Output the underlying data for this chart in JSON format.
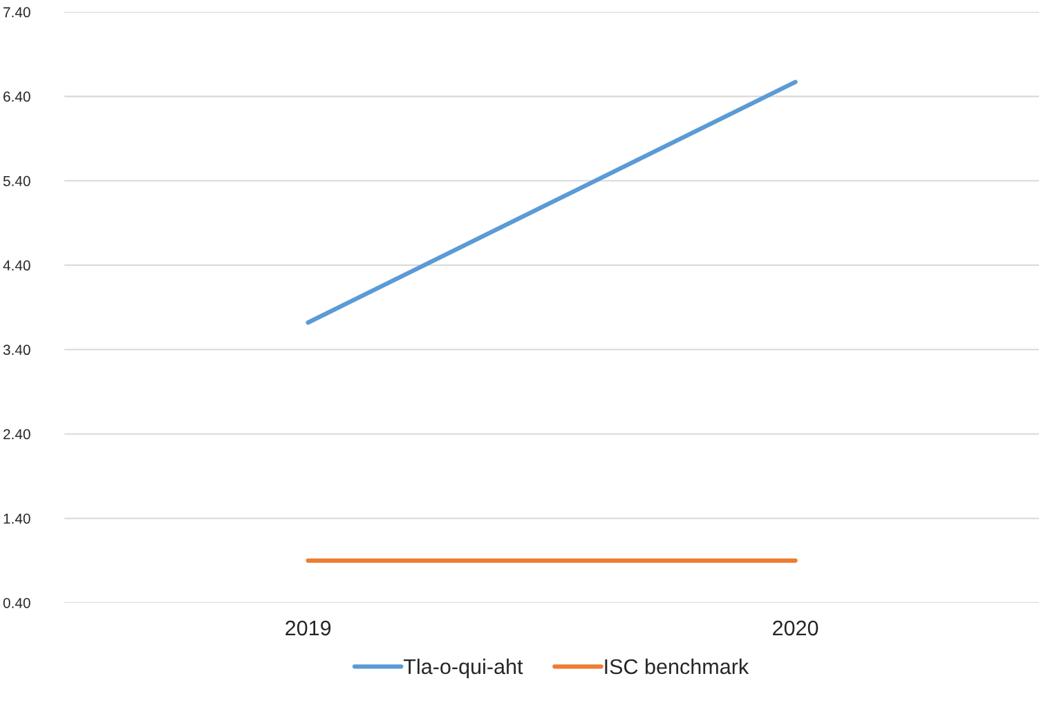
{
  "chart_data": {
    "type": "line",
    "categories": [
      "2019",
      "2020"
    ],
    "series": [
      {
        "name": "Tla-o-qui-aht",
        "color": "#5b9bd5",
        "values": [
          3.72,
          6.57
        ]
      },
      {
        "name": "ISC benchmark",
        "color": "#ed7d31",
        "values": [
          0.9,
          0.9
        ]
      }
    ],
    "ylim": [
      0.4,
      7.4
    ],
    "yticks": [
      {
        "value": 0.4,
        "label": "0.40"
      },
      {
        "value": 1.4,
        "label": "1.40"
      },
      {
        "value": 2.4,
        "label": "2.40"
      },
      {
        "value": 3.4,
        "label": "3.40"
      },
      {
        "value": 4.4,
        "label": "4.40"
      },
      {
        "value": 5.4,
        "label": "5.40"
      },
      {
        "value": 6.4,
        "label": "6.40"
      },
      {
        "value": 7.4,
        "label": "7.40"
      }
    ],
    "grid": "y",
    "legend": "bottom",
    "marker": "none",
    "line_style": "solid"
  }
}
